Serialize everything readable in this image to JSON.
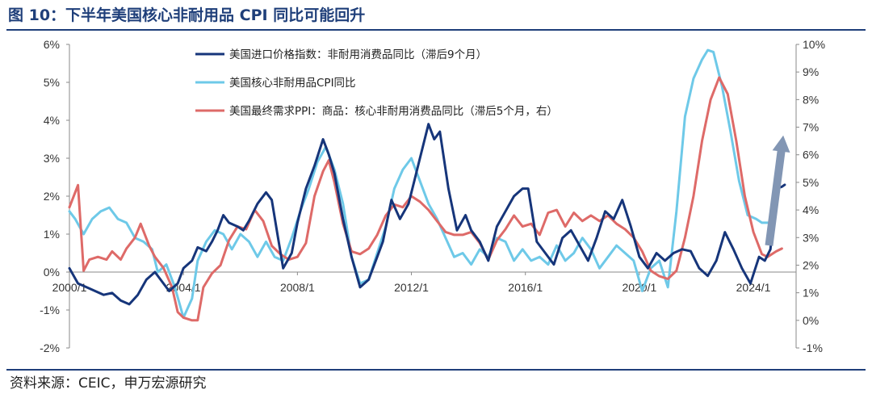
{
  "page": {
    "title": "图 10：下半年美国核心非耐用品 CPI 同比可能回升",
    "source": "资料来源：CEIC，申万宏源研究"
  },
  "chart_data": {
    "type": "line",
    "x_range": [
      2000.0,
      2025.5
    ],
    "y_left": {
      "ylim": [
        -2,
        6
      ],
      "ticks": [
        "-2%",
        "-1%",
        "0%",
        "1%",
        "2%",
        "3%",
        "4%",
        "5%",
        "6%"
      ]
    },
    "y_right": {
      "ylim": [
        -1,
        10
      ],
      "ticks": [
        "-1%",
        "0%",
        "1%",
        "2%",
        "3%",
        "4%",
        "5%",
        "6%",
        "7%",
        "8%",
        "9%",
        "10%"
      ]
    },
    "x_ticks": [
      {
        "value": 2000.0,
        "label": "2000/1"
      },
      {
        "value": 2004.0,
        "label": "2004/1"
      },
      {
        "value": 2008.0,
        "label": "2008/1"
      },
      {
        "value": 2012.0,
        "label": "2012/1"
      },
      {
        "value": 2016.0,
        "label": "2016/1"
      },
      {
        "value": 2020.0,
        "label": "2020/1"
      },
      {
        "value": 2024.0,
        "label": "2024/1"
      }
    ],
    "grid": false,
    "legend_position": "top-center",
    "arrow": {
      "color": "#8296b4",
      "from": [
        2024.55,
        0.7
      ],
      "to": [
        2025.05,
        3.6
      ]
    },
    "series": [
      {
        "name": "美国进口价格指数：非耐用消费品同比（滞后9个月）",
        "axis": "left",
        "color": "#16357a",
        "points": [
          [
            2000.0,
            0.1
          ],
          [
            2000.3,
            -0.3
          ],
          [
            2000.6,
            -0.4
          ],
          [
            2000.9,
            -0.5
          ],
          [
            2001.2,
            -0.6
          ],
          [
            2001.5,
            -0.55
          ],
          [
            2001.8,
            -0.75
          ],
          [
            2002.1,
            -0.85
          ],
          [
            2002.4,
            -0.6
          ],
          [
            2002.7,
            -0.2
          ],
          [
            2003.0,
            0.0
          ],
          [
            2003.2,
            -0.2
          ],
          [
            2003.5,
            -0.5
          ],
          [
            2003.8,
            -0.3
          ],
          [
            2004.0,
            0.1
          ],
          [
            2004.3,
            0.3
          ],
          [
            2004.5,
            0.65
          ],
          [
            2004.8,
            0.55
          ],
          [
            2005.0,
            0.8
          ],
          [
            2005.2,
            1.1
          ],
          [
            2005.4,
            1.5
          ],
          [
            2005.6,
            1.3
          ],
          [
            2005.9,
            1.2
          ],
          [
            2006.1,
            1.1
          ],
          [
            2006.3,
            1.35
          ],
          [
            2006.6,
            1.8
          ],
          [
            2006.9,
            2.1
          ],
          [
            2007.1,
            1.9
          ],
          [
            2007.3,
            1.0
          ],
          [
            2007.5,
            0.1
          ],
          [
            2007.8,
            0.5
          ],
          [
            2008.0,
            1.3
          ],
          [
            2008.3,
            2.2
          ],
          [
            2008.6,
            2.8
          ],
          [
            2008.9,
            3.5
          ],
          [
            2009.1,
            3.1
          ],
          [
            2009.3,
            2.6
          ],
          [
            2009.6,
            1.4
          ],
          [
            2009.9,
            0.4
          ],
          [
            2010.2,
            -0.4
          ],
          [
            2010.5,
            -0.2
          ],
          [
            2010.8,
            0.4
          ],
          [
            2011.0,
            0.8
          ],
          [
            2011.3,
            1.9
          ],
          [
            2011.6,
            1.4
          ],
          [
            2011.9,
            1.8
          ],
          [
            2012.1,
            2.4
          ],
          [
            2012.3,
            3.0
          ],
          [
            2012.6,
            3.9
          ],
          [
            2012.8,
            3.5
          ],
          [
            2013.0,
            3.7
          ],
          [
            2013.3,
            2.2
          ],
          [
            2013.6,
            1.1
          ],
          [
            2013.9,
            1.5
          ],
          [
            2014.1,
            1.1
          ],
          [
            2014.4,
            0.8
          ],
          [
            2014.7,
            0.3
          ],
          [
            2015.0,
            1.2
          ],
          [
            2015.3,
            1.6
          ],
          [
            2015.6,
            2.0
          ],
          [
            2015.9,
            2.2
          ],
          [
            2016.1,
            2.2
          ],
          [
            2016.4,
            0.8
          ],
          [
            2016.7,
            0.5
          ],
          [
            2017.0,
            0.2
          ],
          [
            2017.3,
            0.9
          ],
          [
            2017.6,
            1.1
          ],
          [
            2017.9,
            0.7
          ],
          [
            2018.2,
            0.3
          ],
          [
            2018.5,
            0.9
          ],
          [
            2018.8,
            1.6
          ],
          [
            2019.1,
            1.4
          ],
          [
            2019.4,
            1.9
          ],
          [
            2019.7,
            1.2
          ],
          [
            2020.0,
            0.4
          ],
          [
            2020.3,
            0.1
          ],
          [
            2020.6,
            0.5
          ],
          [
            2020.9,
            0.3
          ],
          [
            2021.2,
            0.5
          ],
          [
            2021.5,
            0.6
          ],
          [
            2021.8,
            0.55
          ],
          [
            2022.1,
            0.1
          ],
          [
            2022.4,
            -0.1
          ],
          [
            2022.7,
            0.3
          ],
          [
            2023.0,
            1.05
          ],
          [
            2023.3,
            0.6
          ],
          [
            2023.6,
            0.1
          ],
          [
            2023.9,
            -0.3
          ],
          [
            2024.2,
            0.4
          ],
          [
            2024.4,
            0.3
          ],
          [
            2024.6,
            0.6
          ],
          [
            2024.8,
            2.2
          ],
          [
            2025.0,
            2.25
          ],
          [
            2025.1,
            2.3
          ]
        ]
      },
      {
        "name": "美国核心非耐用品CPI同比",
        "axis": "left",
        "color": "#6ec9e8",
        "points": [
          [
            2000.0,
            1.6
          ],
          [
            2000.2,
            1.4
          ],
          [
            2000.5,
            1.0
          ],
          [
            2000.8,
            1.4
          ],
          [
            2001.1,
            1.6
          ],
          [
            2001.4,
            1.7
          ],
          [
            2001.7,
            1.4
          ],
          [
            2002.0,
            1.3
          ],
          [
            2002.3,
            0.9
          ],
          [
            2002.6,
            0.8
          ],
          [
            2002.9,
            0.6
          ],
          [
            2003.1,
            0.0
          ],
          [
            2003.4,
            0.2
          ],
          [
            2003.7,
            -0.4
          ],
          [
            2004.0,
            -1.2
          ],
          [
            2004.3,
            -0.7
          ],
          [
            2004.5,
            0.3
          ],
          [
            2004.8,
            0.8
          ],
          [
            2005.1,
            1.1
          ],
          [
            2005.4,
            1.0
          ],
          [
            2005.7,
            0.6
          ],
          [
            2006.0,
            1.0
          ],
          [
            2006.3,
            0.8
          ],
          [
            2006.6,
            0.4
          ],
          [
            2006.9,
            0.8
          ],
          [
            2007.2,
            0.4
          ],
          [
            2007.5,
            0.3
          ],
          [
            2007.8,
            0.9
          ],
          [
            2008.1,
            1.6
          ],
          [
            2008.4,
            2.2
          ],
          [
            2008.7,
            2.9
          ],
          [
            2009.0,
            3.3
          ],
          [
            2009.3,
            2.7
          ],
          [
            2009.6,
            1.8
          ],
          [
            2009.9,
            0.4
          ],
          [
            2010.2,
            -0.3
          ],
          [
            2010.5,
            -0.2
          ],
          [
            2010.8,
            0.5
          ],
          [
            2011.1,
            1.2
          ],
          [
            2011.4,
            2.2
          ],
          [
            2011.7,
            2.7
          ],
          [
            2012.0,
            3.0
          ],
          [
            2012.3,
            2.4
          ],
          [
            2012.6,
            1.8
          ],
          [
            2012.9,
            1.4
          ],
          [
            2013.2,
            0.9
          ],
          [
            2013.5,
            0.4
          ],
          [
            2013.8,
            0.5
          ],
          [
            2014.1,
            0.2
          ],
          [
            2014.4,
            0.6
          ],
          [
            2014.7,
            0.4
          ],
          [
            2015.0,
            0.9
          ],
          [
            2015.3,
            0.8
          ],
          [
            2015.6,
            0.3
          ],
          [
            2015.9,
            0.6
          ],
          [
            2016.2,
            0.3
          ],
          [
            2016.5,
            0.4
          ],
          [
            2016.8,
            0.2
          ],
          [
            2017.1,
            0.7
          ],
          [
            2017.4,
            0.3
          ],
          [
            2017.7,
            0.5
          ],
          [
            2018.0,
            0.9
          ],
          [
            2018.3,
            0.6
          ],
          [
            2018.6,
            0.1
          ],
          [
            2018.9,
            0.4
          ],
          [
            2019.2,
            0.7
          ],
          [
            2019.5,
            0.5
          ],
          [
            2019.8,
            0.3
          ],
          [
            2020.1,
            -0.5
          ],
          [
            2020.4,
            0.1
          ],
          [
            2020.7,
            0.3
          ],
          [
            2021.0,
            -0.4
          ],
          [
            2021.3,
            1.6
          ],
          [
            2021.6,
            4.1
          ],
          [
            2021.9,
            5.1
          ],
          [
            2022.2,
            5.6
          ],
          [
            2022.4,
            5.85
          ],
          [
            2022.6,
            5.8
          ],
          [
            2022.9,
            4.9
          ],
          [
            2023.2,
            3.7
          ],
          [
            2023.5,
            2.4
          ],
          [
            2023.8,
            1.5
          ],
          [
            2024.1,
            1.4
          ],
          [
            2024.3,
            1.3
          ],
          [
            2024.5,
            1.3
          ]
        ]
      },
      {
        "name": "美国最终需求PPI：商品：核心非耐用消费品同比（滞后5个月，右）",
        "axis": "right",
        "color": "#de6a68",
        "points": [
          [
            2000.0,
            4.1
          ],
          [
            2000.3,
            4.9
          ],
          [
            2000.5,
            1.8
          ],
          [
            2000.7,
            2.2
          ],
          [
            2001.0,
            2.3
          ],
          [
            2001.3,
            2.2
          ],
          [
            2001.5,
            2.5
          ],
          [
            2001.8,
            2.2
          ],
          [
            2002.0,
            2.6
          ],
          [
            2002.3,
            3.0
          ],
          [
            2002.5,
            3.5
          ],
          [
            2002.8,
            2.7
          ],
          [
            2003.0,
            2.3
          ],
          [
            2003.3,
            1.9
          ],
          [
            2003.6,
            1.2
          ],
          [
            2003.8,
            0.3
          ],
          [
            2004.0,
            0.1
          ],
          [
            2004.3,
            0.0
          ],
          [
            2004.5,
            0.0
          ],
          [
            2004.7,
            1.2
          ],
          [
            2005.0,
            1.7
          ],
          [
            2005.3,
            2.0
          ],
          [
            2005.6,
            2.9
          ],
          [
            2005.9,
            3.4
          ],
          [
            2006.2,
            3.3
          ],
          [
            2006.5,
            4.0
          ],
          [
            2006.8,
            3.6
          ],
          [
            2007.1,
            2.7
          ],
          [
            2007.4,
            2.4
          ],
          [
            2007.7,
            2.2
          ],
          [
            2008.0,
            2.3
          ],
          [
            2008.3,
            2.8
          ],
          [
            2008.6,
            4.5
          ],
          [
            2008.9,
            5.4
          ],
          [
            2009.1,
            5.8
          ],
          [
            2009.3,
            5.0
          ],
          [
            2009.6,
            3.5
          ],
          [
            2009.9,
            2.5
          ],
          [
            2010.2,
            2.4
          ],
          [
            2010.5,
            2.6
          ],
          [
            2010.8,
            3.1
          ],
          [
            2011.1,
            3.8
          ],
          [
            2011.4,
            4.2
          ],
          [
            2011.7,
            4.1
          ],
          [
            2012.0,
            4.5
          ],
          [
            2012.3,
            4.3
          ],
          [
            2012.6,
            4.0
          ],
          [
            2012.9,
            3.6
          ],
          [
            2013.2,
            3.2
          ],
          [
            2013.5,
            3.1
          ],
          [
            2013.8,
            3.1
          ],
          [
            2014.1,
            3.2
          ],
          [
            2014.4,
            2.8
          ],
          [
            2014.7,
            2.2
          ],
          [
            2015.0,
            2.9
          ],
          [
            2015.3,
            3.3
          ],
          [
            2015.6,
            3.8
          ],
          [
            2015.9,
            3.4
          ],
          [
            2016.2,
            3.5
          ],
          [
            2016.5,
            3.1
          ],
          [
            2016.8,
            3.9
          ],
          [
            2017.1,
            4.0
          ],
          [
            2017.4,
            3.4
          ],
          [
            2017.7,
            3.9
          ],
          [
            2018.0,
            3.6
          ],
          [
            2018.3,
            3.8
          ],
          [
            2018.6,
            3.6
          ],
          [
            2018.9,
            3.8
          ],
          [
            2019.2,
            3.5
          ],
          [
            2019.5,
            3.3
          ],
          [
            2019.8,
            3.0
          ],
          [
            2020.1,
            2.5
          ],
          [
            2020.4,
            1.8
          ],
          [
            2020.7,
            1.6
          ],
          [
            2021.0,
            1.5
          ],
          [
            2021.3,
            1.8
          ],
          [
            2021.6,
            3.0
          ],
          [
            2021.9,
            4.5
          ],
          [
            2022.2,
            6.5
          ],
          [
            2022.5,
            8.0
          ],
          [
            2022.8,
            8.8
          ],
          [
            2023.1,
            8.2
          ],
          [
            2023.4,
            6.5
          ],
          [
            2023.7,
            4.5
          ],
          [
            2024.0,
            3.2
          ],
          [
            2024.3,
            2.4
          ],
          [
            2024.5,
            2.3
          ],
          [
            2024.8,
            2.5
          ],
          [
            2025.0,
            2.6
          ]
        ]
      }
    ]
  }
}
